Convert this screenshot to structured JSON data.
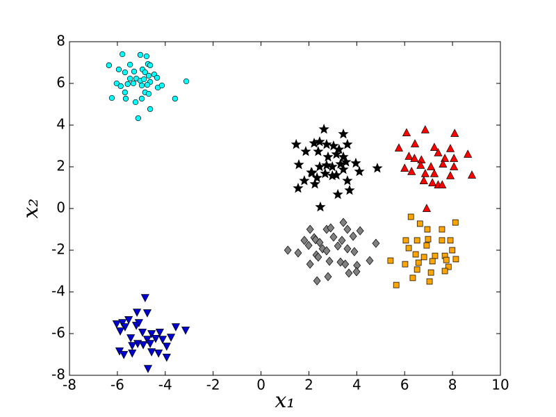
{
  "chart_data": {
    "type": "scatter",
    "xlabel": "x₁",
    "ylabel": "x₂",
    "xlim": [
      -8,
      10
    ],
    "ylim": [
      -8,
      8
    ],
    "xticks": [
      -8,
      -6,
      -4,
      -2,
      0,
      2,
      4,
      6,
      8,
      10
    ],
    "yticks": [
      -8,
      -6,
      -4,
      -2,
      0,
      2,
      4,
      6,
      8
    ],
    "series": [
      {
        "color": "#00ffff",
        "marker": "o",
        "x": [
          -6.35,
          -5.79,
          -5.04,
          -4.78,
          -4.72,
          -4.63,
          -5.94,
          -5.68,
          -5.47,
          -5.3,
          -4.95,
          -4.84,
          -4.69,
          -4.46,
          -4.34,
          -5.47,
          -5.21,
          -5.04,
          -4.89,
          -4.63,
          -6.03,
          -5.86,
          -5.57,
          -5.33,
          -4.98,
          -4.75,
          -4.31,
          -4.14,
          -3.12,
          -5.68,
          -4.84,
          -4.69,
          -6.23,
          -5.65,
          -4.98,
          -3.59,
          -5.24,
          -4.63,
          -5.13
        ],
        "values": [
          6.87,
          7.4,
          7.37,
          7.3,
          6.93,
          6.87,
          6.67,
          6.53,
          6.9,
          6.57,
          6.67,
          6.53,
          6.37,
          6.43,
          6.27,
          6.23,
          6.23,
          6.13,
          6.2,
          6.07,
          6.0,
          5.87,
          5.97,
          6.0,
          5.9,
          5.93,
          5.8,
          5.9,
          6.1,
          5.57,
          5.57,
          5.5,
          5.3,
          5.27,
          5.27,
          5.27,
          5.1,
          4.77,
          4.33
        ]
      },
      {
        "color": "#000000",
        "marker": "*",
        "x": [
          2.63,
          1.47,
          2.22,
          2.45,
          2.74,
          3.44,
          3.03,
          3.26,
          3.61,
          1.87,
          2.39,
          2.8,
          3.15,
          3.44,
          1.58,
          2.1,
          2.45,
          2.74,
          2.98,
          3.32,
          3.55,
          3.96,
          4.86,
          1.81,
          2.34,
          2.68,
          2.98,
          3.15,
          3.44,
          3.61,
          4.11,
          1.55,
          2.25,
          3.7,
          3.21,
          2.48,
          2.13
        ],
        "values": [
          3.8,
          3.07,
          3.13,
          3.2,
          3.07,
          3.57,
          3.0,
          2.83,
          3.07,
          2.73,
          2.73,
          2.47,
          2.6,
          2.47,
          2.1,
          1.73,
          2.0,
          2.07,
          2.0,
          2.13,
          2.23,
          2.17,
          1.93,
          1.33,
          1.47,
          1.67,
          1.57,
          1.6,
          1.87,
          1.33,
          1.77,
          0.97,
          1.17,
          0.87,
          0.67,
          0.07,
          1.7
        ]
      },
      {
        "color": "#ff0000",
        "marker": "^",
        "x": [
          6.08,
          6.86,
          8.09,
          5.76,
          6.43,
          7.24,
          7.91,
          8.64,
          6.18,
          6.41,
          6.7,
          7.4,
          7.68,
          8.06,
          6.0,
          6.67,
          7.1,
          7.6,
          8.06,
          8.81,
          6.29,
          6.86,
          7.24,
          7.91,
          6.8,
          7.4,
          7.57,
          6.92,
          7.16
        ],
        "values": [
          3.63,
          3.77,
          3.6,
          2.9,
          3.1,
          2.93,
          2.87,
          2.6,
          2.5,
          2.4,
          2.33,
          2.67,
          2.4,
          2.4,
          1.93,
          2.07,
          2.0,
          2.13,
          2.0,
          1.6,
          1.77,
          1.67,
          1.67,
          1.57,
          1.33,
          1.13,
          1.13,
          0.0,
          1.23
        ]
      },
      {
        "color": "#808080",
        "marker": "D",
        "x": [
          1.12,
          1.55,
          1.81,
          2.05,
          2.22,
          2.28,
          2.45,
          2.74,
          2.91,
          3.44,
          3.61,
          3.03,
          3.21,
          3.38,
          3.85,
          4.14,
          4.8,
          2.31,
          2.39,
          2.57,
          2.74,
          3.61,
          3.9,
          2.05,
          2.86,
          3.32,
          3.52,
          4.01,
          4.54,
          3.67,
          3.99,
          2.8,
          2.34,
          1.99
        ],
        "values": [
          -2.0,
          -2.13,
          -1.53,
          -1.0,
          -1.4,
          -1.5,
          -1.63,
          -1.0,
          -0.93,
          -0.67,
          -1.0,
          -1.37,
          -1.8,
          -1.53,
          -1.33,
          -1.07,
          -1.67,
          -2.23,
          -2.33,
          -1.93,
          -2.03,
          -1.93,
          -2.07,
          -2.67,
          -2.53,
          -2.57,
          -2.67,
          -2.73,
          -2.5,
          -3.1,
          -3.03,
          -3.27,
          -3.47,
          -1.77
        ]
      },
      {
        "color": "#ffa500",
        "marker": "s",
        "x": [
          6.26,
          6.64,
          6.95,
          7.56,
          8.12,
          6.05,
          6.52,
          6.98,
          7.56,
          7.91,
          6.17,
          6.92,
          7.99,
          6.46,
          6.81,
          7.27,
          7.68,
          8.14,
          5.41,
          6.02,
          6.58,
          7.16,
          7.83,
          7.68,
          6.52,
          7.1,
          6.34,
          5.65,
          7.04,
          7.74
        ],
        "values": [
          -0.4,
          -0.73,
          -1.0,
          -1.0,
          -0.67,
          -1.53,
          -1.53,
          -1.47,
          -1.53,
          -1.53,
          -1.9,
          -1.77,
          -2.0,
          -2.2,
          -2.33,
          -2.27,
          -2.27,
          -2.43,
          -2.5,
          -2.67,
          -2.6,
          -2.53,
          -2.8,
          -3.0,
          -2.93,
          -3.07,
          -3.33,
          -3.67,
          -3.5,
          -2.47
        ]
      },
      {
        "color": "#0000cc",
        "marker": "v",
        "x": [
          -4.84,
          -4.75,
          -5.18,
          -5.53,
          -6.03,
          -5.79,
          -5.68,
          -5.21,
          -4.95,
          -4.57,
          -4.23,
          -3.56,
          -3.15,
          -5.88,
          -5.44,
          -4.75,
          -4.4,
          -4.11,
          -3.76,
          -5.15,
          -4.92,
          -4.63,
          -3.94,
          -5.38,
          -5.91,
          -5.73,
          -5.38,
          -4.57,
          -4.28,
          -3.94,
          -4.72,
          -5.1
        ],
        "values": [
          -4.27,
          -5.0,
          -4.97,
          -5.33,
          -5.53,
          -5.47,
          -5.67,
          -5.6,
          -5.93,
          -6.0,
          -5.93,
          -5.67,
          -5.83,
          -5.87,
          -6.2,
          -6.27,
          -6.23,
          -6.27,
          -6.17,
          -6.47,
          -6.53,
          -6.47,
          -6.6,
          -6.57,
          -6.83,
          -7.0,
          -6.93,
          -6.87,
          -6.93,
          -7.13,
          -7.67,
          -5.47
        ]
      }
    ]
  }
}
